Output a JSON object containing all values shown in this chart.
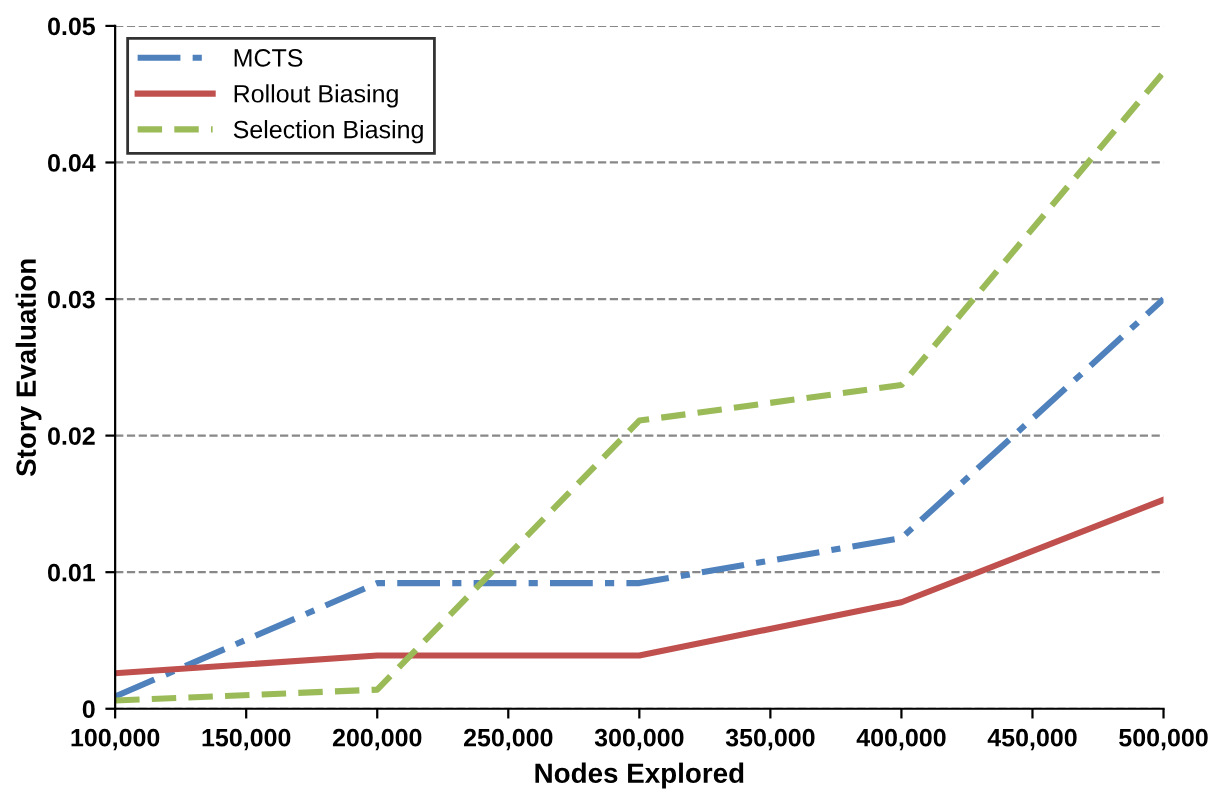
{
  "chart_data": {
    "type": "line",
    "xlabel": "Nodes Explored",
    "ylabel": "Story Evaluation",
    "x": [
      100000,
      200000,
      300000,
      400000,
      500000
    ],
    "series": [
      {
        "name": "MCTS",
        "color": "#4f81bd",
        "line_style": "dashdot",
        "values": [
          0.0009,
          0.0092,
          0.0092,
          0.0125,
          0.03
        ]
      },
      {
        "name": "Rollout Biasing",
        "color": "#c0504d",
        "line_style": "solid",
        "values": [
          0.0026,
          0.0039,
          0.0039,
          0.0078,
          0.0153
        ]
      },
      {
        "name": "Selection Biasing",
        "color": "#9bbb59",
        "line_style": "dashed",
        "values": [
          0.0006,
          0.0014,
          0.0211,
          0.0237,
          0.0466
        ]
      }
    ],
    "xlim": [
      100000,
      500000
    ],
    "ylim": [
      0,
      0.05
    ],
    "xticks": [
      {
        "value": 100000,
        "label": "100,000"
      },
      {
        "value": 150000,
        "label": "150,000"
      },
      {
        "value": 200000,
        "label": "200,000"
      },
      {
        "value": 250000,
        "label": "250,000"
      },
      {
        "value": 300000,
        "label": "300,000"
      },
      {
        "value": 350000,
        "label": "350,000"
      },
      {
        "value": 400000,
        "label": "400,000"
      },
      {
        "value": 450000,
        "label": "450,000"
      },
      {
        "value": 500000,
        "label": "500,000"
      }
    ],
    "yticks": [
      0,
      0.01,
      0.02,
      0.03,
      0.04,
      0.05
    ],
    "grid": "y",
    "legend": "top left"
  }
}
